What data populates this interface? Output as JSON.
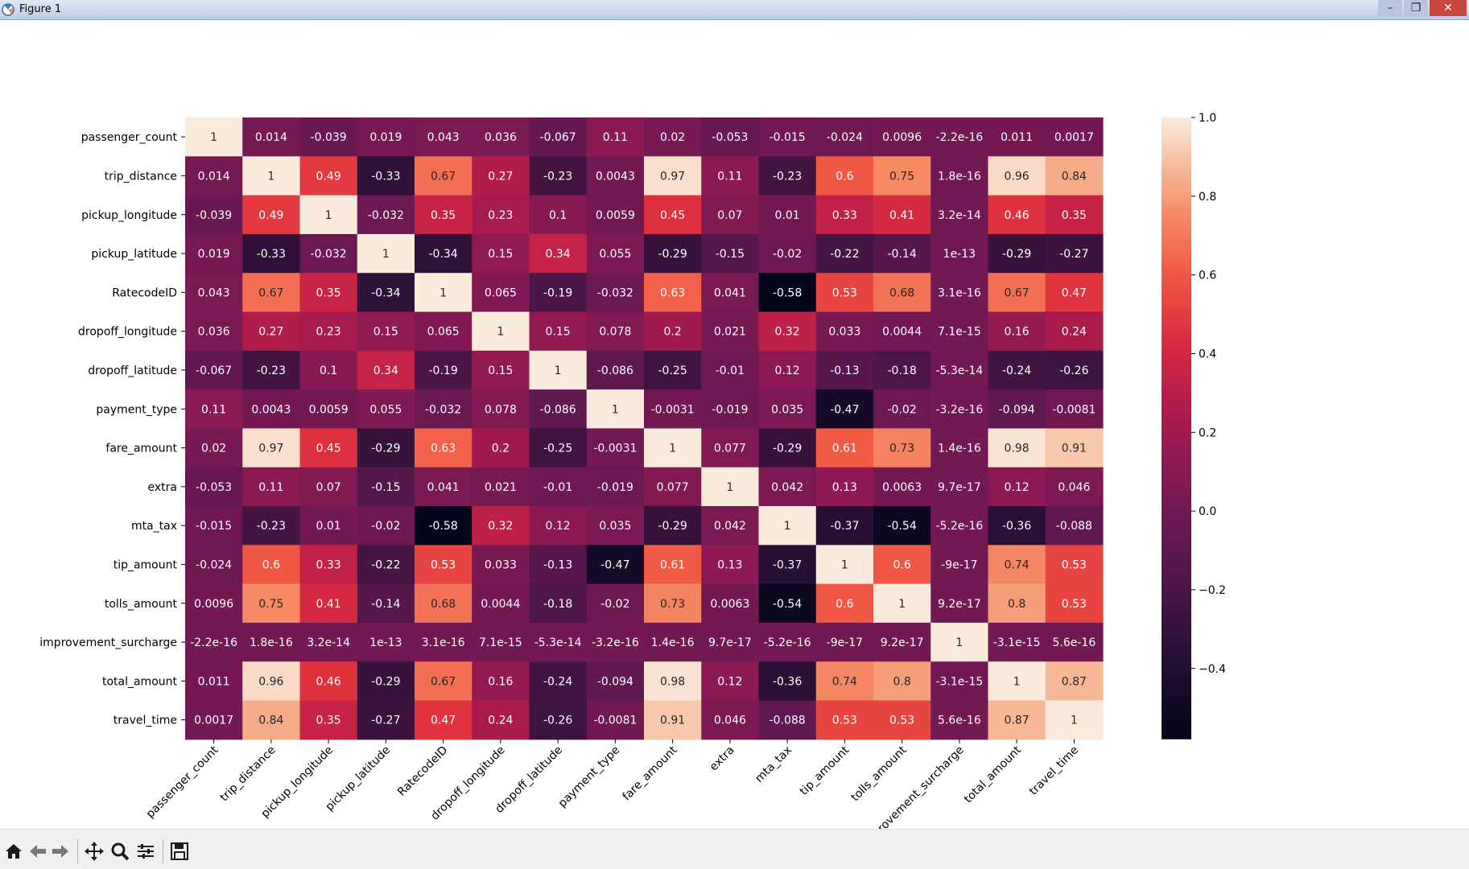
{
  "window": {
    "title": "Figure 1"
  },
  "toolbar": {
    "buttons": [
      {
        "icon": "home-icon"
      },
      {
        "icon": "back-arrow-icon"
      },
      {
        "icon": "forward-arrow-icon"
      },
      {
        "icon": "pan-icon"
      },
      {
        "icon": "zoom-icon"
      },
      {
        "icon": "configure-subplots-icon"
      },
      {
        "icon": "save-icon"
      }
    ]
  },
  "chart_data": {
    "type": "heatmap",
    "colormap": "rocket",
    "labels": [
      "passenger_count",
      "trip_distance",
      "pickup_longitude",
      "pickup_latitude",
      "RatecodeID",
      "dropoff_longitude",
      "dropoff_latitude",
      "payment_type",
      "fare_amount",
      "extra",
      "mta_tax",
      "tip_amount",
      "tolls_amount",
      "improvement_surcharge",
      "total_amount",
      "travel_time"
    ],
    "values": [
      [
        1,
        0.014,
        -0.039,
        0.019,
        0.043,
        0.036,
        -0.067,
        0.11,
        0.02,
        -0.053,
        -0.015,
        -0.024,
        0.0096,
        -2.2e-16,
        0.011,
        0.0017
      ],
      [
        0.014,
        1,
        0.49,
        -0.33,
        0.67,
        0.27,
        -0.23,
        0.0043,
        0.97,
        0.11,
        -0.23,
        0.6,
        0.75,
        1.8e-16,
        0.96,
        0.84
      ],
      [
        -0.039,
        0.49,
        1,
        -0.032,
        0.35,
        0.23,
        0.1,
        0.0059,
        0.45,
        0.07,
        0.01,
        0.33,
        0.41,
        3.2e-14,
        0.46,
        0.35
      ],
      [
        0.019,
        -0.33,
        -0.032,
        1,
        -0.34,
        0.15,
        0.34,
        0.055,
        -0.29,
        -0.15,
        -0.02,
        -0.22,
        -0.14,
        1e-13,
        -0.29,
        -0.27
      ],
      [
        0.043,
        0.67,
        0.35,
        -0.34,
        1,
        0.065,
        -0.19,
        -0.032,
        0.63,
        0.041,
        -0.58,
        0.53,
        0.68,
        3.1e-16,
        0.67,
        0.47
      ],
      [
        0.036,
        0.27,
        0.23,
        0.15,
        0.065,
        1,
        0.15,
        0.078,
        0.2,
        0.021,
        0.32,
        0.033,
        0.0044,
        7.1e-15,
        0.16,
        0.24
      ],
      [
        -0.067,
        -0.23,
        0.1,
        0.34,
        -0.19,
        0.15,
        1,
        -0.086,
        -0.25,
        -0.01,
        0.12,
        -0.13,
        -0.18,
        -5.3e-14,
        -0.24,
        -0.26
      ],
      [
        0.11,
        0.0043,
        0.0059,
        0.055,
        -0.032,
        0.078,
        -0.086,
        1,
        -0.0031,
        -0.019,
        0.035,
        -0.47,
        -0.02,
        -3.2e-16,
        -0.094,
        -0.0081
      ],
      [
        0.02,
        0.97,
        0.45,
        -0.29,
        0.63,
        0.2,
        -0.25,
        -0.0031,
        1,
        0.077,
        -0.29,
        0.61,
        0.73,
        1.4e-16,
        0.98,
        0.91
      ],
      [
        -0.053,
        0.11,
        0.07,
        -0.15,
        0.041,
        0.021,
        -0.01,
        -0.019,
        0.077,
        1,
        0.042,
        0.13,
        0.0063,
        9.7e-17,
        0.12,
        0.046
      ],
      [
        -0.015,
        -0.23,
        0.01,
        -0.02,
        -0.58,
        0.32,
        0.12,
        0.035,
        -0.29,
        0.042,
        1,
        -0.37,
        -0.54,
        -5.2e-16,
        -0.36,
        -0.088
      ],
      [
        -0.024,
        0.6,
        0.33,
        -0.22,
        0.53,
        0.033,
        -0.13,
        -0.47,
        0.61,
        0.13,
        -0.37,
        1,
        0.6,
        -9e-17,
        0.74,
        0.53
      ],
      [
        0.0096,
        0.75,
        0.41,
        -0.14,
        0.68,
        0.0044,
        -0.18,
        -0.02,
        0.73,
        0.0063,
        -0.54,
        0.6,
        1,
        9.2e-17,
        0.8,
        0.53
      ],
      [
        -2.2e-16,
        1.8e-16,
        3.2e-14,
        1e-13,
        3.1e-16,
        7.1e-15,
        -5.3e-14,
        -3.2e-16,
        1.4e-16,
        9.7e-17,
        -5.2e-16,
        -9e-17,
        9.2e-17,
        1,
        -3.1e-15,
        5.6e-16
      ],
      [
        0.011,
        0.96,
        0.46,
        -0.29,
        0.67,
        0.16,
        -0.24,
        -0.094,
        0.98,
        0.12,
        -0.36,
        0.74,
        0.8,
        -3.1e-15,
        1,
        0.87
      ],
      [
        0.0017,
        0.84,
        0.35,
        -0.27,
        0.47,
        0.24,
        -0.26,
        -0.0081,
        0.91,
        0.046,
        -0.088,
        0.53,
        0.53,
        5.6e-16,
        0.87,
        1
      ]
    ],
    "annotations": [
      [
        "1",
        "0.014",
        "-0.039",
        "0.019",
        "0.043",
        "0.036",
        "-0.067",
        "0.11",
        "0.02",
        "-0.053",
        "-0.015",
        "-0.024",
        "0.0096",
        "-2.2e-16",
        "0.011",
        "0.0017"
      ],
      [
        "0.014",
        "1",
        "0.49",
        "-0.33",
        "0.67",
        "0.27",
        "-0.23",
        "0.0043",
        "0.97",
        "0.11",
        "-0.23",
        "0.6",
        "0.75",
        "1.8e-16",
        "0.96",
        "0.84"
      ],
      [
        "-0.039",
        "0.49",
        "1",
        "-0.032",
        "0.35",
        "0.23",
        "0.1",
        "0.0059",
        "0.45",
        "0.07",
        "0.01",
        "0.33",
        "0.41",
        "3.2e-14",
        "0.46",
        "0.35"
      ],
      [
        "0.019",
        "-0.33",
        "-0.032",
        "1",
        "-0.34",
        "0.15",
        "0.34",
        "0.055",
        "-0.29",
        "-0.15",
        "-0.02",
        "-0.22",
        "-0.14",
        "1e-13",
        "-0.29",
        "-0.27"
      ],
      [
        "0.043",
        "0.67",
        "0.35",
        "-0.34",
        "1",
        "0.065",
        "-0.19",
        "-0.032",
        "0.63",
        "0.041",
        "-0.58",
        "0.53",
        "0.68",
        "3.1e-16",
        "0.67",
        "0.47"
      ],
      [
        "0.036",
        "0.27",
        "0.23",
        "0.15",
        "0.065",
        "1",
        "0.15",
        "0.078",
        "0.2",
        "0.021",
        "0.32",
        "0.033",
        "0.0044",
        "7.1e-15",
        "0.16",
        "0.24"
      ],
      [
        "-0.067",
        "-0.23",
        "0.1",
        "0.34",
        "-0.19",
        "0.15",
        "1",
        "-0.086",
        "-0.25",
        "-0.01",
        "0.12",
        "-0.13",
        "-0.18",
        "-5.3e-14",
        "-0.24",
        "-0.26"
      ],
      [
        "0.11",
        "0.0043",
        "0.0059",
        "0.055",
        "-0.032",
        "0.078",
        "-0.086",
        "1",
        "-0.0031",
        "-0.019",
        "0.035",
        "-0.47",
        "-0.02",
        "-3.2e-16",
        "-0.094",
        "-0.0081"
      ],
      [
        "0.02",
        "0.97",
        "0.45",
        "-0.29",
        "0.63",
        "0.2",
        "-0.25",
        "-0.0031",
        "1",
        "0.077",
        "-0.29",
        "0.61",
        "0.73",
        "1.4e-16",
        "0.98",
        "0.91"
      ],
      [
        "-0.053",
        "0.11",
        "0.07",
        "-0.15",
        "0.041",
        "0.021",
        "-0.01",
        "-0.019",
        "0.077",
        "1",
        "0.042",
        "0.13",
        "0.0063",
        "9.7e-17",
        "0.12",
        "0.046"
      ],
      [
        "-0.015",
        "-0.23",
        "0.01",
        "-0.02",
        "-0.58",
        "0.32",
        "0.12",
        "0.035",
        "-0.29",
        "0.042",
        "1",
        "-0.37",
        "-0.54",
        "-5.2e-16",
        "-0.36",
        "-0.088"
      ],
      [
        "-0.024",
        "0.6",
        "0.33",
        "-0.22",
        "0.53",
        "0.033",
        "-0.13",
        "-0.47",
        "0.61",
        "0.13",
        "-0.37",
        "1",
        "0.6",
        "-9e-17",
        "0.74",
        "0.53"
      ],
      [
        "0.0096",
        "0.75",
        "0.41",
        "-0.14",
        "0.68",
        "0.0044",
        "-0.18",
        "-0.02",
        "0.73",
        "0.0063",
        "-0.54",
        "0.6",
        "1",
        "9.2e-17",
        "0.8",
        "0.53"
      ],
      [
        "-2.2e-16",
        "1.8e-16",
        "3.2e-14",
        "1e-13",
        "3.1e-16",
        "7.1e-15",
        "-5.3e-14",
        "-3.2e-16",
        "1.4e-16",
        "9.7e-17",
        "-5.2e-16",
        "-9e-17",
        "9.2e-17",
        "1",
        "-3.1e-15",
        "5.6e-16"
      ],
      [
        "0.011",
        "0.96",
        "0.46",
        "-0.29",
        "0.67",
        "0.16",
        "-0.24",
        "-0.094",
        "0.98",
        "0.12",
        "-0.36",
        "0.74",
        "0.8",
        "-3.1e-15",
        "1",
        "0.87"
      ],
      [
        "0.0017",
        "0.84",
        "0.35",
        "-0.27",
        "0.47",
        "0.24",
        "-0.26",
        "-0.0081",
        "0.91",
        "0.046",
        "-0.088",
        "0.53",
        "0.53",
        "5.6e-16",
        "0.87",
        "1"
      ]
    ],
    "colorbar": {
      "vmin": -0.58,
      "vmax": 1.0,
      "ticks": [
        1.0,
        0.8,
        0.6,
        0.4,
        0.2,
        0.0,
        -0.2,
        -0.4
      ],
      "tick_labels": [
        "1.0",
        "0.8",
        "0.6",
        "0.4",
        "0.2",
        "0.0",
        "−0.2",
        "−0.4"
      ]
    }
  }
}
